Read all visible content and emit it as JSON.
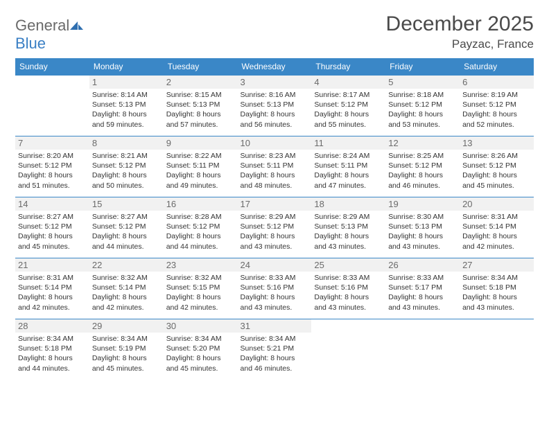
{
  "logo": {
    "textGray": "General",
    "textBlue": "Blue"
  },
  "title": "December 2025",
  "location": "Payzac, France",
  "colors": {
    "headerBg": "#3a87c7",
    "headerText": "#ffffff",
    "dayNumBg": "#f1f1f1",
    "dayNumText": "#6b6b6b",
    "rowBorder": "#3a87c7",
    "bodyText": "#333333"
  },
  "dayHeaders": [
    "Sunday",
    "Monday",
    "Tuesday",
    "Wednesday",
    "Thursday",
    "Friday",
    "Saturday"
  ],
  "weeks": [
    [
      {
        "n": "",
        "sunrise": "",
        "sunset": "",
        "daylight": ""
      },
      {
        "n": "1",
        "sunrise": "Sunrise: 8:14 AM",
        "sunset": "Sunset: 5:13 PM",
        "daylight": "Daylight: 8 hours and 59 minutes."
      },
      {
        "n": "2",
        "sunrise": "Sunrise: 8:15 AM",
        "sunset": "Sunset: 5:13 PM",
        "daylight": "Daylight: 8 hours and 57 minutes."
      },
      {
        "n": "3",
        "sunrise": "Sunrise: 8:16 AM",
        "sunset": "Sunset: 5:13 PM",
        "daylight": "Daylight: 8 hours and 56 minutes."
      },
      {
        "n": "4",
        "sunrise": "Sunrise: 8:17 AM",
        "sunset": "Sunset: 5:12 PM",
        "daylight": "Daylight: 8 hours and 55 minutes."
      },
      {
        "n": "5",
        "sunrise": "Sunrise: 8:18 AM",
        "sunset": "Sunset: 5:12 PM",
        "daylight": "Daylight: 8 hours and 53 minutes."
      },
      {
        "n": "6",
        "sunrise": "Sunrise: 8:19 AM",
        "sunset": "Sunset: 5:12 PM",
        "daylight": "Daylight: 8 hours and 52 minutes."
      }
    ],
    [
      {
        "n": "7",
        "sunrise": "Sunrise: 8:20 AM",
        "sunset": "Sunset: 5:12 PM",
        "daylight": "Daylight: 8 hours and 51 minutes."
      },
      {
        "n": "8",
        "sunrise": "Sunrise: 8:21 AM",
        "sunset": "Sunset: 5:12 PM",
        "daylight": "Daylight: 8 hours and 50 minutes."
      },
      {
        "n": "9",
        "sunrise": "Sunrise: 8:22 AM",
        "sunset": "Sunset: 5:11 PM",
        "daylight": "Daylight: 8 hours and 49 minutes."
      },
      {
        "n": "10",
        "sunrise": "Sunrise: 8:23 AM",
        "sunset": "Sunset: 5:11 PM",
        "daylight": "Daylight: 8 hours and 48 minutes."
      },
      {
        "n": "11",
        "sunrise": "Sunrise: 8:24 AM",
        "sunset": "Sunset: 5:11 PM",
        "daylight": "Daylight: 8 hours and 47 minutes."
      },
      {
        "n": "12",
        "sunrise": "Sunrise: 8:25 AM",
        "sunset": "Sunset: 5:12 PM",
        "daylight": "Daylight: 8 hours and 46 minutes."
      },
      {
        "n": "13",
        "sunrise": "Sunrise: 8:26 AM",
        "sunset": "Sunset: 5:12 PM",
        "daylight": "Daylight: 8 hours and 45 minutes."
      }
    ],
    [
      {
        "n": "14",
        "sunrise": "Sunrise: 8:27 AM",
        "sunset": "Sunset: 5:12 PM",
        "daylight": "Daylight: 8 hours and 45 minutes."
      },
      {
        "n": "15",
        "sunrise": "Sunrise: 8:27 AM",
        "sunset": "Sunset: 5:12 PM",
        "daylight": "Daylight: 8 hours and 44 minutes."
      },
      {
        "n": "16",
        "sunrise": "Sunrise: 8:28 AM",
        "sunset": "Sunset: 5:12 PM",
        "daylight": "Daylight: 8 hours and 44 minutes."
      },
      {
        "n": "17",
        "sunrise": "Sunrise: 8:29 AM",
        "sunset": "Sunset: 5:12 PM",
        "daylight": "Daylight: 8 hours and 43 minutes."
      },
      {
        "n": "18",
        "sunrise": "Sunrise: 8:29 AM",
        "sunset": "Sunset: 5:13 PM",
        "daylight": "Daylight: 8 hours and 43 minutes."
      },
      {
        "n": "19",
        "sunrise": "Sunrise: 8:30 AM",
        "sunset": "Sunset: 5:13 PM",
        "daylight": "Daylight: 8 hours and 43 minutes."
      },
      {
        "n": "20",
        "sunrise": "Sunrise: 8:31 AM",
        "sunset": "Sunset: 5:14 PM",
        "daylight": "Daylight: 8 hours and 42 minutes."
      }
    ],
    [
      {
        "n": "21",
        "sunrise": "Sunrise: 8:31 AM",
        "sunset": "Sunset: 5:14 PM",
        "daylight": "Daylight: 8 hours and 42 minutes."
      },
      {
        "n": "22",
        "sunrise": "Sunrise: 8:32 AM",
        "sunset": "Sunset: 5:14 PM",
        "daylight": "Daylight: 8 hours and 42 minutes."
      },
      {
        "n": "23",
        "sunrise": "Sunrise: 8:32 AM",
        "sunset": "Sunset: 5:15 PM",
        "daylight": "Daylight: 8 hours and 42 minutes."
      },
      {
        "n": "24",
        "sunrise": "Sunrise: 8:33 AM",
        "sunset": "Sunset: 5:16 PM",
        "daylight": "Daylight: 8 hours and 43 minutes."
      },
      {
        "n": "25",
        "sunrise": "Sunrise: 8:33 AM",
        "sunset": "Sunset: 5:16 PM",
        "daylight": "Daylight: 8 hours and 43 minutes."
      },
      {
        "n": "26",
        "sunrise": "Sunrise: 8:33 AM",
        "sunset": "Sunset: 5:17 PM",
        "daylight": "Daylight: 8 hours and 43 minutes."
      },
      {
        "n": "27",
        "sunrise": "Sunrise: 8:34 AM",
        "sunset": "Sunset: 5:18 PM",
        "daylight": "Daylight: 8 hours and 43 minutes."
      }
    ],
    [
      {
        "n": "28",
        "sunrise": "Sunrise: 8:34 AM",
        "sunset": "Sunset: 5:18 PM",
        "daylight": "Daylight: 8 hours and 44 minutes."
      },
      {
        "n": "29",
        "sunrise": "Sunrise: 8:34 AM",
        "sunset": "Sunset: 5:19 PM",
        "daylight": "Daylight: 8 hours and 45 minutes."
      },
      {
        "n": "30",
        "sunrise": "Sunrise: 8:34 AM",
        "sunset": "Sunset: 5:20 PM",
        "daylight": "Daylight: 8 hours and 45 minutes."
      },
      {
        "n": "31",
        "sunrise": "Sunrise: 8:34 AM",
        "sunset": "Sunset: 5:21 PM",
        "daylight": "Daylight: 8 hours and 46 minutes."
      },
      {
        "n": "",
        "sunrise": "",
        "sunset": "",
        "daylight": ""
      },
      {
        "n": "",
        "sunrise": "",
        "sunset": "",
        "daylight": ""
      },
      {
        "n": "",
        "sunrise": "",
        "sunset": "",
        "daylight": ""
      }
    ]
  ]
}
